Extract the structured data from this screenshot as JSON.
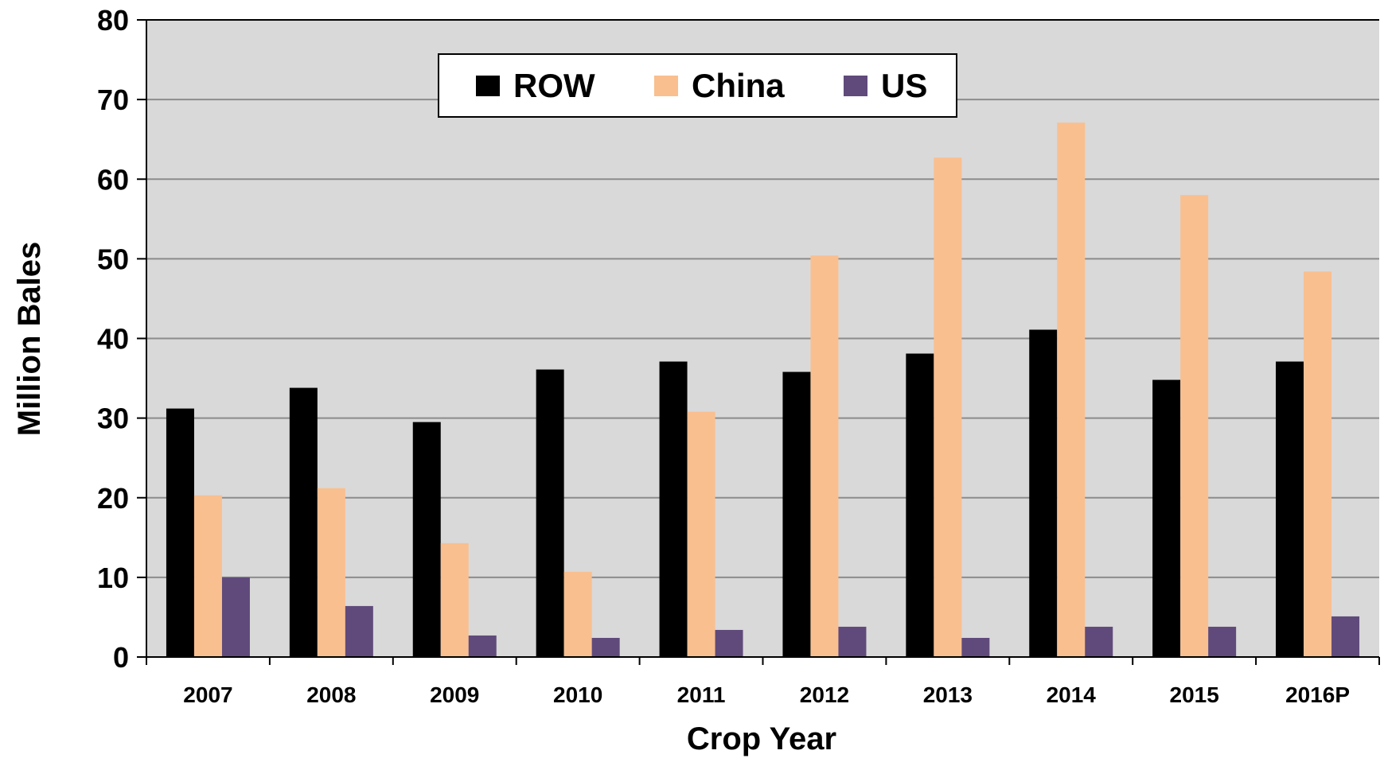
{
  "chart_data": {
    "type": "bar",
    "title": "",
    "xlabel": "Crop Year",
    "ylabel": "Million Bales",
    "ylim": [
      0,
      80
    ],
    "yticks": [
      0,
      10,
      20,
      30,
      40,
      50,
      60,
      70,
      80
    ],
    "grid": true,
    "legend_position": "top-center",
    "categories": [
      "2007",
      "2008",
      "2009",
      "2010",
      "2011",
      "2012",
      "2013",
      "2014",
      "2015",
      "2016P"
    ],
    "series": [
      {
        "name": "ROW",
        "color": "#000000",
        "values": [
          31.2,
          33.8,
          29.5,
          36.1,
          37.1,
          35.8,
          38.1,
          41.1,
          34.8,
          37.1
        ]
      },
      {
        "name": "China",
        "color": "#f9bf8f",
        "values": [
          20.3,
          21.2,
          14.3,
          10.7,
          30.8,
          50.4,
          62.7,
          67.1,
          58.0,
          48.4
        ]
      },
      {
        "name": "US",
        "color": "#604a7b",
        "values": [
          10.0,
          6.4,
          2.7,
          2.4,
          3.4,
          3.8,
          2.4,
          3.8,
          3.8,
          5.1
        ]
      }
    ],
    "plot_background": "#d9d9d9"
  }
}
